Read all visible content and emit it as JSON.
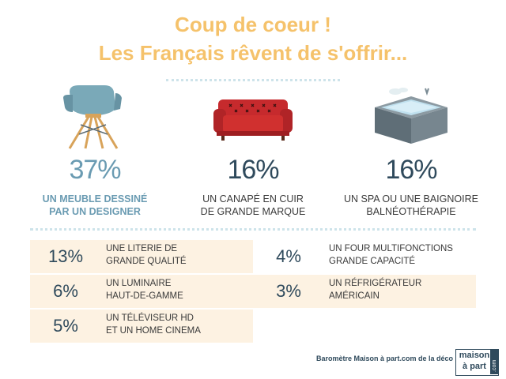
{
  "title_line1": "Coup de coeur !",
  "title_line2": "Les Français rêvent de s'offrir...",
  "chart_data": {
    "type": "table",
    "top_items": [
      {
        "value": "37%",
        "label_line1": "UN MEUBLE DESSINÉ",
        "label_line2": "PAR UN DESIGNER",
        "highlight": true,
        "icon": "designer-chair-icon"
      },
      {
        "value": "16%",
        "label_line1": "UN CANAPÉ EN CUIR",
        "label_line2": "DE GRANDE MARQUE",
        "highlight": false,
        "icon": "red-sofa-icon"
      },
      {
        "value": "16%",
        "label_line1": "UN SPA OU UNE BAIGNOIRE",
        "label_line2": "BALNÉOTHÉRAPIE",
        "highlight": false,
        "icon": "spa-tub-icon"
      }
    ],
    "left_rows": [
      {
        "value": "13%",
        "label_line1": "UNE LITERIE DE",
        "label_line2": "GRANDE QUALITÉ"
      },
      {
        "value": "6%",
        "label_line1": "UN LUMINAIRE",
        "label_line2": "HAUT-DE-GAMME"
      },
      {
        "value": "5%",
        "label_line1": "UN TÉLÉVISEUR HD",
        "label_line2": "ET UN HOME CINEMA"
      }
    ],
    "right_rows": [
      {
        "value": "4%",
        "label_line1": "UN FOUR MULTIFONCTIONS",
        "label_line2": "GRANDE CAPACITÉ"
      },
      {
        "value": "3%",
        "label_line1": "UN RÉFRIGÉRATEUR",
        "label_line2": "AMÉRICAIN"
      }
    ]
  },
  "footer": {
    "source": "Baromètre Maison à part.com de la déco",
    "logo_line1": "maison",
    "logo_line2": "à part",
    "logo_domain": ".com"
  },
  "colors": {
    "title": "#f5c26b",
    "highlight": "#6a9bb2",
    "text_dark": "#2f4a5c",
    "row_background": "#fdf2e2"
  }
}
